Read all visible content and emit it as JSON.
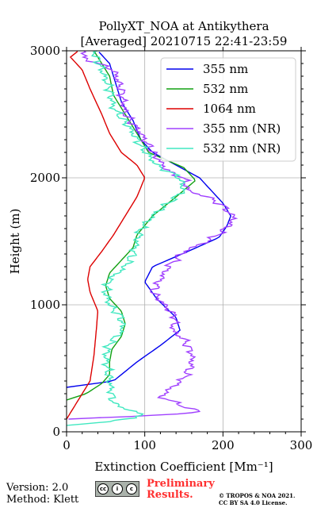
{
  "chart_data": {
    "type": "line",
    "title": "PollyXT_NOA at Antikythera",
    "subtitle": "[Averaged] 20210715 22:41-23:59",
    "xlabel": "Extinction Coefficient [Mm⁻¹]",
    "ylabel": "Height (m)",
    "xlim": [
      0,
      300
    ],
    "ylim": [
      0,
      3000
    ],
    "xticks": [
      "0",
      "100",
      "200",
      "300"
    ],
    "yticks": [
      "0",
      "1000",
      "2000",
      "3000"
    ],
    "grid": true,
    "legend_position": "top-right",
    "series": [
      {
        "name": "355 nm",
        "color": "#0000ee",
        "style": "smooth",
        "points": [
          [
            0,
            350
          ],
          [
            60,
            400
          ],
          [
            90,
            550
          ],
          [
            120,
            680
          ],
          [
            145,
            800
          ],
          [
            140,
            900
          ],
          [
            115,
            1050
          ],
          [
            100,
            1180
          ],
          [
            110,
            1300
          ],
          [
            155,
            1420
          ],
          [
            195,
            1530
          ],
          [
            205,
            1620
          ],
          [
            210,
            1700
          ],
          [
            200,
            1800
          ],
          [
            185,
            1900
          ],
          [
            170,
            2000
          ],
          [
            140,
            2100
          ],
          [
            110,
            2200
          ],
          [
            95,
            2300
          ],
          [
            85,
            2450
          ],
          [
            70,
            2600
          ],
          [
            60,
            2800
          ],
          [
            55,
            2900
          ],
          [
            40,
            3000
          ]
        ]
      },
      {
        "name": "532 nm",
        "color": "#12a012",
        "style": "smooth",
        "points": [
          [
            0,
            250
          ],
          [
            25,
            300
          ],
          [
            45,
            380
          ],
          [
            55,
            450
          ],
          [
            55,
            550
          ],
          [
            58,
            650
          ],
          [
            70,
            750
          ],
          [
            75,
            850
          ],
          [
            70,
            950
          ],
          [
            55,
            1050
          ],
          [
            50,
            1150
          ],
          [
            55,
            1250
          ],
          [
            70,
            1350
          ],
          [
            85,
            1450
          ],
          [
            90,
            1550
          ],
          [
            110,
            1700
          ],
          [
            140,
            1850
          ],
          [
            165,
            1980
          ],
          [
            150,
            2080
          ],
          [
            105,
            2200
          ],
          [
            90,
            2350
          ],
          [
            75,
            2500
          ],
          [
            60,
            2650
          ],
          [
            55,
            2800
          ],
          [
            45,
            2900
          ],
          [
            35,
            3000
          ]
        ]
      },
      {
        "name": "1064 nm",
        "color": "#dd0000",
        "style": "smooth",
        "points": [
          [
            0,
            100
          ],
          [
            10,
            200
          ],
          [
            30,
            400
          ],
          [
            35,
            600
          ],
          [
            38,
            800
          ],
          [
            40,
            950
          ],
          [
            30,
            1100
          ],
          [
            27,
            1200
          ],
          [
            30,
            1300
          ],
          [
            45,
            1420
          ],
          [
            60,
            1550
          ],
          [
            75,
            1700
          ],
          [
            90,
            1850
          ],
          [
            100,
            2000
          ],
          [
            90,
            2100
          ],
          [
            70,
            2200
          ],
          [
            55,
            2350
          ],
          [
            45,
            2500
          ],
          [
            30,
            2700
          ],
          [
            20,
            2850
          ],
          [
            5,
            2950
          ],
          [
            15,
            3000
          ]
        ]
      },
      {
        "name": "355 nm (NR)",
        "color": "#a040ff",
        "style": "noisy",
        "points": [
          [
            0,
            100
          ],
          [
            80,
            120
          ],
          [
            145,
            140
          ],
          [
            170,
            160
          ],
          [
            150,
            200
          ],
          [
            120,
            280
          ],
          [
            150,
            420
          ],
          [
            160,
            530
          ],
          [
            160,
            620
          ],
          [
            150,
            730
          ],
          [
            135,
            800
          ],
          [
            140,
            900
          ],
          [
            125,
            1000
          ],
          [
            110,
            1100
          ],
          [
            120,
            1200
          ],
          [
            130,
            1300
          ],
          [
            150,
            1420
          ],
          [
            180,
            1500
          ],
          [
            200,
            1580
          ],
          [
            215,
            1680
          ],
          [
            200,
            1780
          ],
          [
            180,
            1850
          ],
          [
            155,
            1900
          ],
          [
            150,
            2000
          ],
          [
            130,
            2050
          ],
          [
            110,
            2200
          ],
          [
            95,
            2350
          ],
          [
            75,
            2500
          ],
          [
            70,
            2700
          ],
          [
            60,
            2850
          ],
          [
            20,
            2950
          ],
          [
            25,
            3000
          ]
        ]
      },
      {
        "name": "532 nm (NR)",
        "color": "#40e8c0",
        "style": "noisy",
        "points": [
          [
            0,
            50
          ],
          [
            50,
            80
          ],
          [
            90,
            110
          ],
          [
            95,
            140
          ],
          [
            60,
            220
          ],
          [
            55,
            400
          ],
          [
            50,
            600
          ],
          [
            55,
            700
          ],
          [
            72,
            800
          ],
          [
            70,
            900
          ],
          [
            55,
            1000
          ],
          [
            50,
            1100
          ],
          [
            55,
            1200
          ],
          [
            75,
            1300
          ],
          [
            85,
            1400
          ],
          [
            90,
            1500
          ],
          [
            95,
            1600
          ],
          [
            110,
            1700
          ],
          [
            130,
            1800
          ],
          [
            150,
            1900
          ],
          [
            145,
            2000
          ],
          [
            115,
            2100
          ],
          [
            95,
            2250
          ],
          [
            80,
            2400
          ],
          [
            60,
            2550
          ],
          [
            55,
            2700
          ],
          [
            45,
            2850
          ],
          [
            35,
            3000
          ]
        ]
      }
    ]
  },
  "footer": {
    "version": "Version: 2.0",
    "method": "Method: Klett",
    "preliminary_line1": "Preliminary",
    "preliminary_line2": "Results.",
    "copyright_line1": "© TROPOS & NOA 2021.",
    "copyright_line2": "CC BY SA 4.0 License."
  }
}
